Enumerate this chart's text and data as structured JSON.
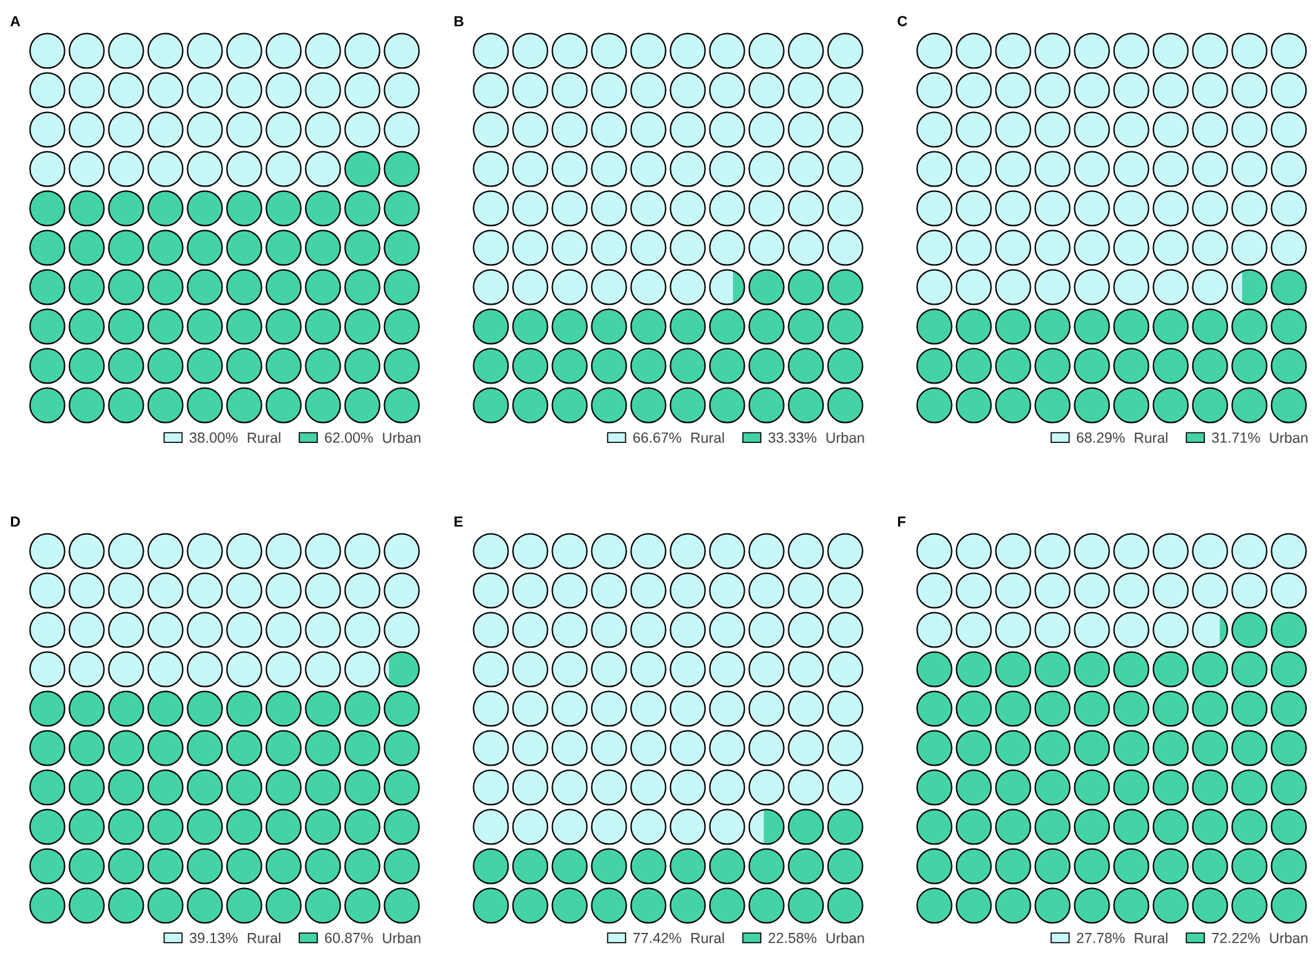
{
  "chart_data": [
    {
      "type": "other",
      "title": "A",
      "categories": [
        "Rural",
        "Urban"
      ],
      "values": [
        38.0,
        62.0
      ],
      "value_labels": [
        "38.00%",
        "62.00%"
      ],
      "colors": [
        "#c8f7f7",
        "#43d3a7"
      ]
    },
    {
      "type": "other",
      "title": "B",
      "categories": [
        "Rural",
        "Urban"
      ],
      "values": [
        66.67,
        33.33
      ],
      "value_labels": [
        "66.67%",
        "33.33%"
      ],
      "colors": [
        "#c8f7f7",
        "#43d3a7"
      ]
    },
    {
      "type": "other",
      "title": "C",
      "categories": [
        "Rural",
        "Urban"
      ],
      "values": [
        68.29,
        31.71
      ],
      "value_labels": [
        "68.29%",
        "31.71%"
      ],
      "colors": [
        "#c8f7f7",
        "#43d3a7"
      ]
    },
    {
      "type": "other",
      "title": "D",
      "categories": [
        "Rural",
        "Urban"
      ],
      "values": [
        39.13,
        60.87
      ],
      "value_labels": [
        "39.13%",
        "60.87%"
      ],
      "colors": [
        "#c8f7f7",
        "#43d3a7"
      ]
    },
    {
      "type": "other",
      "title": "E",
      "categories": [
        "Rural",
        "Urban"
      ],
      "values": [
        77.42,
        22.58
      ],
      "value_labels": [
        "77.42%",
        "22.58%"
      ],
      "colors": [
        "#c8f7f7",
        "#43d3a7"
      ]
    },
    {
      "type": "other",
      "title": "F",
      "categories": [
        "Rural",
        "Urban"
      ],
      "values": [
        27.78,
        72.22
      ],
      "value_labels": [
        "27.78%",
        "72.22%"
      ],
      "colors": [
        "#c8f7f7",
        "#43d3a7"
      ]
    }
  ]
}
